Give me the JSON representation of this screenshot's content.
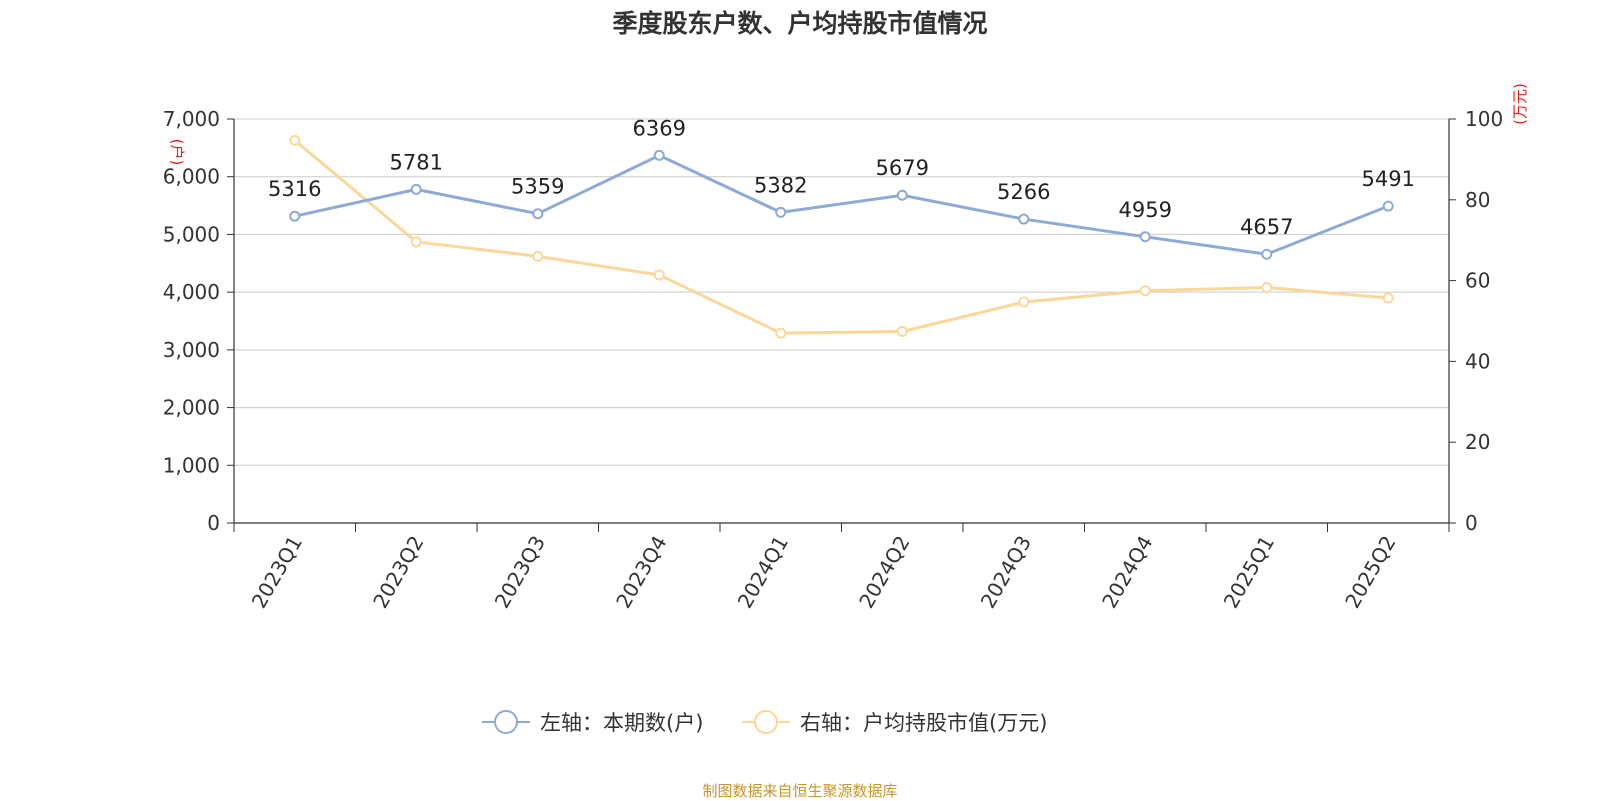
{
  "chart_data": {
    "type": "line",
    "title": "季度股东户数、户均持股市值情况",
    "categories": [
      "2023Q1",
      "2023Q2",
      "2023Q3",
      "2023Q4",
      "2024Q1",
      "2024Q2",
      "2024Q3",
      "2024Q4",
      "2025Q1",
      "2025Q2"
    ],
    "series": [
      {
        "name": "左轴：本期数(户)",
        "axis": "left",
        "color": "#8eaad6",
        "values": [
          5316,
          5781,
          5359,
          6369,
          5382,
          5679,
          5266,
          4959,
          4657,
          5491
        ],
        "show_labels": true
      },
      {
        "name": "右轴：户均持股市值(万元)",
        "axis": "right",
        "color": "#fbd89a",
        "values": [
          94.7,
          69.6,
          66.0,
          61.4,
          47.0,
          47.4,
          54.7,
          57.5,
          58.3,
          55.7
        ],
        "show_labels": false
      }
    ],
    "y_left": {
      "min": 0,
      "max": 7000,
      "ticks": [
        0,
        1000,
        2000,
        3000,
        4000,
        5000,
        6000,
        7000
      ],
      "tick_labels": [
        "0",
        "1,000",
        "2,000",
        "3,000",
        "4,000",
        "5,000",
        "6,000",
        "7,000"
      ],
      "unit": "(户)"
    },
    "y_right": {
      "min": 0,
      "max": 100,
      "ticks": [
        0,
        20,
        40,
        60,
        80,
        100
      ],
      "tick_labels": [
        "0",
        "20",
        "40",
        "60",
        "80",
        "100"
      ],
      "unit": "(万元)"
    },
    "grid": true,
    "legend_position": "bottom-center",
    "source": "制图数据来自恒生聚源数据库"
  }
}
